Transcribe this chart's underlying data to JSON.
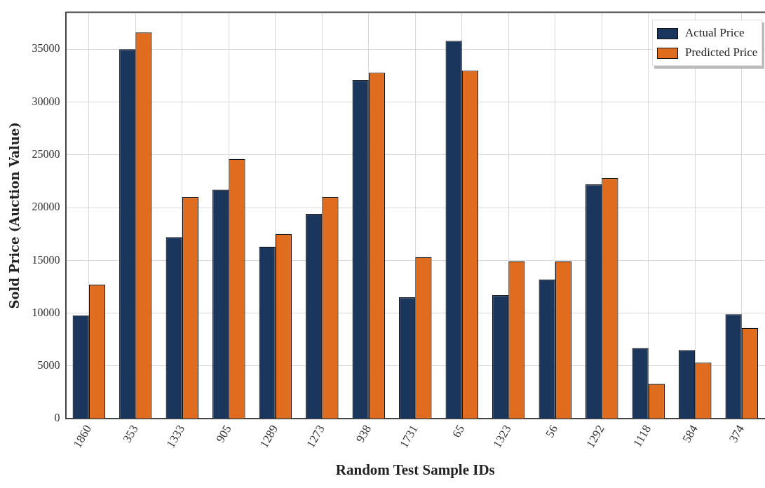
{
  "chart_data": {
    "type": "bar",
    "xlabel": "Random Test Sample IDs",
    "ylabel": "Sold Price (Auction Value)",
    "categories": [
      "1860",
      "353",
      "1333",
      "905",
      "1289",
      "1273",
      "938",
      "1731",
      "65",
      "1323",
      "56",
      "1292",
      "1118",
      "584",
      "374"
    ],
    "series": [
      {
        "name": "Actual Price",
        "color": "#1b365d",
        "values": [
          9800,
          35000,
          17200,
          21700,
          16300,
          19400,
          32100,
          11500,
          35800,
          11700,
          13200,
          22200,
          6700,
          6500,
          9900
        ]
      },
      {
        "name": "Predicted Price",
        "color": "#e06c1f",
        "values": [
          12700,
          36600,
          21000,
          24600,
          17500,
          21000,
          32800,
          15300,
          33000,
          14900,
          14900,
          22800,
          3300,
          5300,
          8600
        ]
      }
    ],
    "ylim": [
      0,
      38500
    ],
    "yticks": [
      0,
      5000,
      10000,
      15000,
      20000,
      25000,
      30000,
      35000
    ],
    "grid": true,
    "legend": "top right"
  }
}
